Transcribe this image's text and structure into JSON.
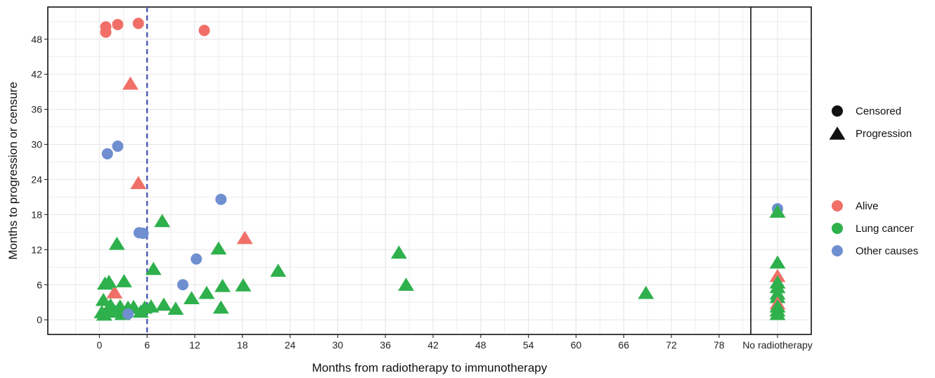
{
  "chart_data": {
    "type": "scatter",
    "xlabel": "Months from radiotherapy to immunotherapy",
    "ylabel": "Months to progression or censure",
    "xlim": [
      -6.5,
      82
    ],
    "ylim": [
      -2.5,
      53.5
    ],
    "x_ticks": [
      0,
      6,
      12,
      18,
      24,
      30,
      36,
      42,
      48,
      54,
      60,
      66,
      72,
      78
    ],
    "y_ticks": [
      0,
      6,
      12,
      18,
      24,
      30,
      36,
      42,
      48
    ],
    "x_category_label": "No radiotherapy",
    "reference_line": {
      "x": 6,
      "style": "dashed",
      "color": "#3d4fb5"
    },
    "grid": true,
    "shape_legend": [
      {
        "label": "Censored",
        "shape": "circle"
      },
      {
        "label": "Progression",
        "shape": "triangle"
      }
    ],
    "color_legend": [
      {
        "label": "Alive",
        "color": "#f07068"
      },
      {
        "label": "Lung cancer",
        "color": "#2eb04c"
      },
      {
        "label": "Other causes",
        "color": "#6f8fd0"
      }
    ],
    "legend_position": "right",
    "series": [
      {
        "name": "Alive",
        "color": "#f07068",
        "points": [
          {
            "x": 0.8,
            "y": 50.1,
            "shape": "circle"
          },
          {
            "x": 0.8,
            "y": 49.2,
            "shape": "circle"
          },
          {
            "x": 2.3,
            "y": 50.5,
            "shape": "circle"
          },
          {
            "x": 4.9,
            "y": 50.7,
            "shape": "circle"
          },
          {
            "x": 13.2,
            "y": 49.5,
            "shape": "circle"
          },
          {
            "x": 3.9,
            "y": 40.3,
            "shape": "triangle"
          },
          {
            "x": 4.9,
            "y": 23.3,
            "shape": "triangle"
          },
          {
            "x": 18.3,
            "y": 13.9,
            "shape": "triangle"
          },
          {
            "x": 1.9,
            "y": 4.6,
            "shape": "triangle"
          }
        ]
      },
      {
        "name": "Lung cancer",
        "color": "#2eb04c",
        "points": [
          {
            "x": 7.9,
            "y": 16.8,
            "shape": "triangle"
          },
          {
            "x": 2.2,
            "y": 12.9,
            "shape": "triangle"
          },
          {
            "x": 15.0,
            "y": 12.1,
            "shape": "triangle"
          },
          {
            "x": 37.7,
            "y": 11.4,
            "shape": "triangle"
          },
          {
            "x": 6.8,
            "y": 8.6,
            "shape": "triangle"
          },
          {
            "x": 22.5,
            "y": 8.3,
            "shape": "triangle"
          },
          {
            "x": 0.7,
            "y": 6.1,
            "shape": "triangle"
          },
          {
            "x": 1.2,
            "y": 6.4,
            "shape": "triangle"
          },
          {
            "x": 3.1,
            "y": 6.5,
            "shape": "triangle"
          },
          {
            "x": 18.1,
            "y": 5.8,
            "shape": "triangle"
          },
          {
            "x": 38.6,
            "y": 5.9,
            "shape": "triangle"
          },
          {
            "x": 15.5,
            "y": 5.7,
            "shape": "triangle"
          },
          {
            "x": 13.5,
            "y": 4.5,
            "shape": "triangle"
          },
          {
            "x": 68.8,
            "y": 4.5,
            "shape": "triangle"
          },
          {
            "x": 11.6,
            "y": 3.6,
            "shape": "triangle"
          },
          {
            "x": 0.5,
            "y": 3.3,
            "shape": "triangle"
          },
          {
            "x": 1.4,
            "y": 2.4,
            "shape": "triangle"
          },
          {
            "x": 2.6,
            "y": 2.2,
            "shape": "triangle"
          },
          {
            "x": 3.6,
            "y": 2.0,
            "shape": "triangle"
          },
          {
            "x": 4.3,
            "y": 2.1,
            "shape": "triangle"
          },
          {
            "x": 5.7,
            "y": 2.0,
            "shape": "triangle"
          },
          {
            "x": 6.5,
            "y": 2.2,
            "shape": "triangle"
          },
          {
            "x": 8.1,
            "y": 2.5,
            "shape": "triangle"
          },
          {
            "x": 9.6,
            "y": 1.8,
            "shape": "triangle"
          },
          {
            "x": 15.3,
            "y": 2.0,
            "shape": "triangle"
          },
          {
            "x": 0.3,
            "y": 1.2,
            "shape": "triangle"
          },
          {
            "x": 1.0,
            "y": 1.5,
            "shape": "triangle"
          },
          {
            "x": 2.0,
            "y": 1.3,
            "shape": "triangle"
          },
          {
            "x": 3.0,
            "y": 1.2,
            "shape": "triangle"
          },
          {
            "x": 0.6,
            "y": 0.8,
            "shape": "triangle"
          },
          {
            "x": 2.9,
            "y": 0.9,
            "shape": "triangle"
          },
          {
            "x": 5.2,
            "y": 1.3,
            "shape": "triangle"
          }
        ]
      },
      {
        "name": "Other causes",
        "color": "#6f8fd0",
        "points": [
          {
            "x": 2.3,
            "y": 29.7,
            "shape": "circle"
          },
          {
            "x": 1.0,
            "y": 28.4,
            "shape": "circle"
          },
          {
            "x": 15.3,
            "y": 20.6,
            "shape": "circle"
          },
          {
            "x": 5.0,
            "y": 14.9,
            "shape": "circle"
          },
          {
            "x": 5.5,
            "y": 14.8,
            "shape": "circle"
          },
          {
            "x": 12.2,
            "y": 10.4,
            "shape": "circle"
          },
          {
            "x": 10.5,
            "y": 6.0,
            "shape": "circle"
          },
          {
            "x": 3.6,
            "y": 1.0,
            "shape": "circle"
          }
        ]
      }
    ],
    "no_radiotherapy_points": [
      {
        "y": 19.0,
        "shape": "circle",
        "color": "#6f8fd0"
      },
      {
        "y": 18.4,
        "shape": "triangle",
        "color": "#2eb04c"
      },
      {
        "y": 9.7,
        "shape": "triangle",
        "color": "#2eb04c"
      },
      {
        "y": 7.4,
        "shape": "triangle",
        "color": "#f07068"
      },
      {
        "y": 6.3,
        "shape": "triangle",
        "color": "#2eb04c"
      },
      {
        "y": 5.5,
        "shape": "triangle",
        "color": "#2eb04c"
      },
      {
        "y": 4.4,
        "shape": "triangle",
        "color": "#2eb04c"
      },
      {
        "y": 3.8,
        "shape": "triangle",
        "color": "#2eb04c"
      },
      {
        "y": 2.7,
        "shape": "triangle",
        "color": "#f07068"
      },
      {
        "y": 2.2,
        "shape": "triangle",
        "color": "#2eb04c"
      },
      {
        "y": 1.5,
        "shape": "triangle",
        "color": "#2eb04c"
      },
      {
        "y": 0.9,
        "shape": "triangle",
        "color": "#2eb04c"
      }
    ]
  }
}
